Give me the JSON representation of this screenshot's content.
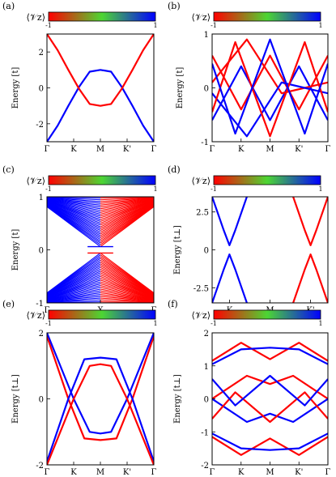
{
  "colorbar": {
    "label": "⟨𝒱z⟩",
    "min_label": "-1",
    "max_label": "1",
    "colors": [
      "#ff0000",
      "#4dd633",
      "#0000ff"
    ]
  },
  "chart_data": [
    {
      "panel": "(a)",
      "type": "line",
      "ylabel": "Energy [t]",
      "ylim": [
        -3,
        3
      ],
      "yticks": [
        "2",
        "0",
        "-2"
      ],
      "xticks": [
        "Γ",
        "K",
        "M",
        "K'",
        "Γ"
      ],
      "series": [
        {
          "color": "#0000ff",
          "values": [
            [
              0,
              -3
            ],
            [
              0.1,
              -2.1
            ],
            [
              0.2,
              -1.0
            ],
            [
              0.3,
              0.05
            ],
            [
              0.4,
              0.9
            ],
            [
              0.5,
              1.0
            ],
            [
              0.6,
              0.9
            ],
            [
              0.7,
              0.05
            ],
            [
              0.8,
              -1.0
            ],
            [
              0.9,
              -2.1
            ],
            [
              1,
              -3
            ]
          ]
        },
        {
          "color": "#ff0000",
          "values": [
            [
              0,
              3
            ],
            [
              0.1,
              2.1
            ],
            [
              0.2,
              1.0
            ],
            [
              0.3,
              -0.05
            ],
            [
              0.4,
              -0.9
            ],
            [
              0.5,
              -1.0
            ],
            [
              0.6,
              -0.9
            ],
            [
              0.7,
              -0.05
            ],
            [
              0.8,
              1.0
            ],
            [
              0.9,
              2.1
            ],
            [
              1,
              3
            ]
          ]
        }
      ]
    },
    {
      "panel": "(b)",
      "type": "line",
      "ylabel": "Energy [t]",
      "ylim": [
        -1,
        1
      ],
      "yticks": [
        "1",
        "0",
        "-1"
      ],
      "xticks": [
        "Γ",
        "K",
        "M",
        "K'",
        "Γ"
      ],
      "series": [
        {
          "color": "#ff0000",
          "values": [
            [
              0,
              0.6
            ],
            [
              0.25,
              -0.4
            ],
            [
              0.5,
              0.6
            ],
            [
              0.75,
              -0.4
            ],
            [
              1,
              0.6
            ]
          ]
        },
        {
          "color": "#0000ff",
          "values": [
            [
              0,
              -0.6
            ],
            [
              0.25,
              0.4
            ],
            [
              0.5,
              -0.6
            ],
            [
              0.75,
              0.4
            ],
            [
              1,
              -0.6
            ]
          ]
        },
        {
          "color": "#ff0000",
          "values": [
            [
              0,
              0.1
            ],
            [
              0.3,
              0.9
            ],
            [
              0.6,
              -0.1
            ],
            [
              1,
              0.1
            ]
          ]
        },
        {
          "color": "#0000ff",
          "values": [
            [
              0,
              -0.1
            ],
            [
              0.3,
              -0.9
            ],
            [
              0.6,
              0.1
            ],
            [
              1,
              -0.1
            ]
          ]
        },
        {
          "color": "#ff0000",
          "values": [
            [
              0,
              -0.45
            ],
            [
              0.2,
              0.85
            ],
            [
              0.5,
              -0.9
            ],
            [
              0.8,
              0.85
            ],
            [
              1,
              -0.45
            ]
          ]
        },
        {
          "color": "#0000ff",
          "values": [
            [
              0,
              0.45
            ],
            [
              0.2,
              -0.85
            ],
            [
              0.5,
              0.9
            ],
            [
              0.8,
              -0.85
            ],
            [
              1,
              0.45
            ]
          ]
        }
      ]
    },
    {
      "panel": "(c)",
      "type": "area",
      "ylabel": "Energy [t]",
      "ylim": [
        -1,
        1
      ],
      "yticks": [
        "1",
        "0",
        "-1"
      ],
      "xticks": [
        "Γ",
        "X",
        "Γ"
      ]
    },
    {
      "panel": "(d)",
      "type": "line",
      "ylabel": "Energy [t⊥]",
      "ylim": [
        -3.5,
        3.5
      ],
      "yticks": [
        "2.5",
        "0",
        "-2.5"
      ],
      "xticks": [
        "K",
        "M",
        "K'"
      ],
      "series": [
        {
          "color": "#0000ff",
          "values": [
            [
              0,
              3.5
            ],
            [
              0.1,
              1.3
            ],
            [
              0.15,
              0.3
            ],
            [
              0.2,
              1.3
            ],
            [
              0.3,
              3.5
            ]
          ]
        },
        {
          "color": "#0000ff",
          "values": [
            [
              0,
              -3.5
            ],
            [
              0.1,
              -1.3
            ],
            [
              0.15,
              -0.3
            ],
            [
              0.2,
              -1.3
            ],
            [
              0.3,
              -3.5
            ]
          ]
        },
        {
          "color": "#ff0000",
          "values": [
            [
              0.7,
              3.5
            ],
            [
              0.8,
              1.3
            ],
            [
              0.85,
              0.3
            ],
            [
              0.9,
              1.3
            ],
            [
              1,
              3.5
            ]
          ]
        },
        {
          "color": "#ff0000",
          "values": [
            [
              0.7,
              -3.5
            ],
            [
              0.8,
              -1.3
            ],
            [
              0.85,
              -0.3
            ],
            [
              0.9,
              -1.3
            ],
            [
              1,
              -3.5
            ]
          ]
        }
      ]
    },
    {
      "panel": "(e)",
      "type": "line",
      "ylabel": "Energy [t⊥]",
      "ylim": [
        -2,
        2
      ],
      "yticks": [
        "2",
        "0",
        "-2"
      ],
      "xticks": [
        "Γ",
        "K",
        "M",
        "K'",
        "Γ"
      ],
      "series": [
        {
          "color": "#ff0000",
          "values": [
            [
              0,
              1.9
            ],
            [
              0.2,
              0.0
            ],
            [
              0.35,
              -1.2
            ],
            [
              0.5,
              -1.25
            ],
            [
              0.65,
              -1.2
            ],
            [
              0.8,
              0.0
            ],
            [
              1,
              1.9
            ]
          ]
        },
        {
          "color": "#0000ff",
          "values": [
            [
              0,
              -1.9
            ],
            [
              0.2,
              0.0
            ],
            [
              0.35,
              1.2
            ],
            [
              0.5,
              1.25
            ],
            [
              0.65,
              1.2
            ],
            [
              0.8,
              0.0
            ],
            [
              1,
              -1.9
            ]
          ]
        },
        {
          "color": "#0000ff",
          "values": [
            [
              0,
              2.0
            ],
            [
              0.25,
              0.0
            ],
            [
              0.4,
              -1.0
            ],
            [
              0.5,
              -1.05
            ],
            [
              0.6,
              -1.0
            ],
            [
              0.75,
              0.0
            ],
            [
              1,
              2.0
            ]
          ]
        },
        {
          "color": "#ff0000",
          "values": [
            [
              0,
              -2.0
            ],
            [
              0.25,
              0.0
            ],
            [
              0.4,
              1.0
            ],
            [
              0.5,
              1.05
            ],
            [
              0.6,
              1.0
            ],
            [
              0.75,
              0.0
            ],
            [
              1,
              -2.0
            ]
          ]
        }
      ]
    },
    {
      "panel": "(f)",
      "type": "line",
      "ylabel": "Energy [t⊥]",
      "ylim": [
        -2,
        2
      ],
      "yticks": [
        "2",
        "1",
        "0",
        "-1",
        "-2"
      ],
      "xticks": [
        "Γ",
        "K",
        "M",
        "K'",
        "Γ"
      ],
      "series": [
        {
          "color": "#ff0000",
          "values": [
            [
              0,
              1.15
            ],
            [
              0.25,
              1.7
            ],
            [
              0.5,
              1.2
            ],
            [
              0.75,
              1.7
            ],
            [
              1,
              1.15
            ]
          ]
        },
        {
          "color": "#0000ff",
          "values": [
            [
              0,
              1.05
            ],
            [
              0.25,
              1.5
            ],
            [
              0.5,
              1.55
            ],
            [
              0.75,
              1.5
            ],
            [
              1,
              1.05
            ]
          ]
        },
        {
          "color": "#ff0000",
          "values": [
            [
              0,
              -1.15
            ],
            [
              0.25,
              -1.7
            ],
            [
              0.5,
              -1.2
            ],
            [
              0.75,
              -1.7
            ],
            [
              1,
              -1.15
            ]
          ]
        },
        {
          "color": "#0000ff",
          "values": [
            [
              0,
              -1.05
            ],
            [
              0.25,
              -1.5
            ],
            [
              0.5,
              -1.55
            ],
            [
              0.75,
              -1.5
            ],
            [
              1,
              -1.05
            ]
          ]
        },
        {
          "color": "#ff0000",
          "values": [
            [
              0,
              0.0
            ],
            [
              0.3,
              0.7
            ],
            [
              0.5,
              0.45
            ],
            [
              0.7,
              0.7
            ],
            [
              1,
              0.0
            ]
          ]
        },
        {
          "color": "#0000ff",
          "values": [
            [
              0,
              0.0
            ],
            [
              0.3,
              -0.7
            ],
            [
              0.5,
              -0.45
            ],
            [
              0.7,
              -0.7
            ],
            [
              1,
              0.0
            ]
          ]
        },
        {
          "color": "#ff0000",
          "values": [
            [
              0,
              -0.6
            ],
            [
              0.2,
              0.2
            ],
            [
              0.5,
              -0.7
            ],
            [
              0.8,
              0.2
            ],
            [
              1,
              -0.6
            ]
          ]
        },
        {
          "color": "#0000ff",
          "values": [
            [
              0,
              0.6
            ],
            [
              0.2,
              -0.2
            ],
            [
              0.5,
              0.7
            ],
            [
              0.8,
              -0.2
            ],
            [
              1,
              0.6
            ]
          ]
        }
      ]
    }
  ]
}
